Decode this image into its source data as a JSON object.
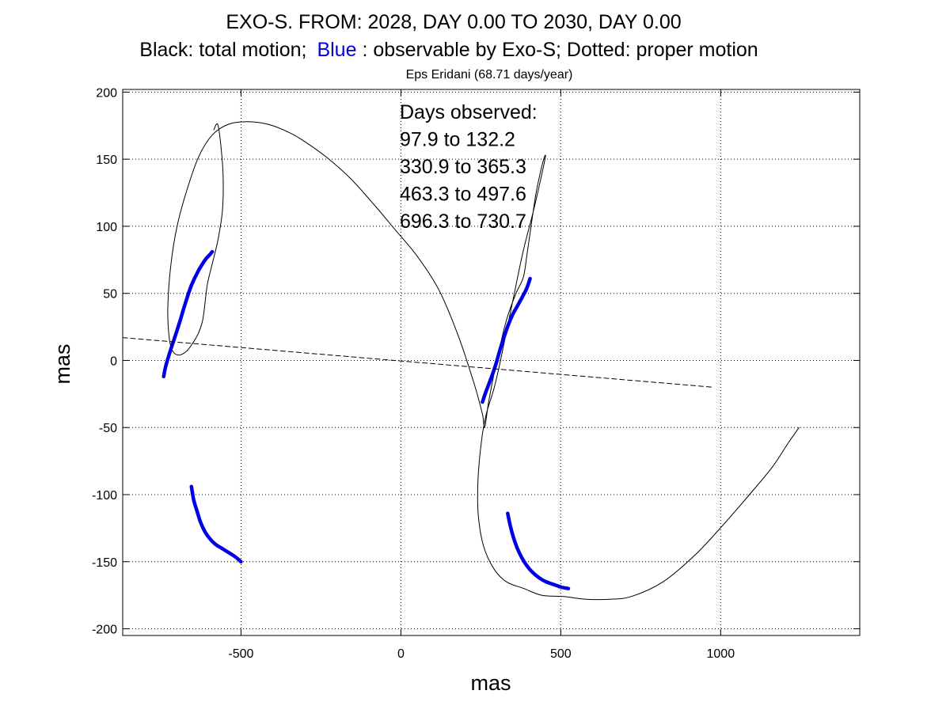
{
  "title": {
    "line1": "EXO-S. FROM: 2028, DAY 0.00 TO 2030, DAY 0.00",
    "line2_black": "Black: total motion;",
    "line2_blue": "Blue",
    "line2_rest": ": observable by Exo-S; Dotted: proper motion",
    "subtitle": "Eps Eridani (68.71 days/year)"
  },
  "colors": {
    "total_motion": "#000000",
    "observable": "#0000e6",
    "proper_motion": "#000000",
    "grid": "#000000"
  },
  "chart_data": {
    "type": "line",
    "xlabel": "mas",
    "ylabel": "mas",
    "xlim": [
      -870,
      1435
    ],
    "ylim": [
      -205,
      202
    ],
    "xticks": [
      -500,
      0,
      500,
      1000
    ],
    "yticks": [
      200,
      150,
      100,
      50,
      0,
      -50,
      -100,
      -150,
      -200
    ],
    "grid": true,
    "grid_style": "dotted",
    "annotation": {
      "heading": "Days observed:",
      "lines": [
        "97.9 to 132.2",
        "330.9 to 365.3",
        "463.3 to 497.6",
        "696.3 to 730.7"
      ]
    },
    "series": [
      {
        "name": "total motion",
        "style": "solid-thin",
        "x": [
          -585,
          -573,
          -563,
          -556,
          -558,
          -572,
          -590,
          -605,
          -613,
          -620,
          -632,
          -648,
          -670,
          -696,
          -716,
          -726,
          -729,
          -720,
          -700,
          -668,
          -632,
          -590,
          -540,
          -480,
          -415,
          -350,
          -300,
          -230,
          -155,
          -80,
          -20,
          50,
          120,
          180,
          230,
          255,
          262,
          275,
          300,
          330,
          360,
          383,
          395,
          410,
          423,
          438,
          448,
          452,
          440,
          415,
          383,
          353,
          327,
          307,
          290,
          267,
          252,
          241,
          242,
          258,
          290,
          330,
          385,
          440,
          510,
          580,
          650,
          720,
          820,
          920,
          1010,
          1090,
          1160,
          1210,
          1245
        ],
        "y": [
          172,
          176,
          160,
          138,
          112,
          90,
          72,
          57,
          42,
          30,
          21,
          14,
          7,
          4,
          8,
          20,
          40,
          70,
          100,
          128,
          152,
          168,
          176,
          178,
          176,
          170,
          163,
          151,
          135,
          115,
          98,
          78,
          52,
          18,
          -18,
          -40,
          -50,
          -30,
          0,
          30,
          50,
          62,
          80,
          105,
          125,
          142,
          151,
          152,
          138,
          112,
          82,
          48,
          18,
          -5,
          -22,
          -40,
          -60,
          -90,
          -115,
          -138,
          -155,
          -165,
          -170,
          -175,
          -176,
          -178,
          -178,
          -176,
          -165,
          -145,
          -122,
          -100,
          -80,
          -62,
          -50
        ]
      },
      {
        "name": "observable segment 1",
        "style": "solid-thick",
        "x": [
          -742,
          -735,
          -720,
          -706,
          -690,
          -675,
          -655,
          -633,
          -612,
          -597,
          -590
        ],
        "y": [
          -12,
          -4,
          8,
          18,
          30,
          42,
          56,
          67,
          75,
          79,
          81
        ]
      },
      {
        "name": "observable segment 2",
        "style": "solid-thick",
        "x": [
          -655,
          -648,
          -638,
          -626,
          -612,
          -597,
          -580,
          -560,
          -540,
          -520,
          -500
        ],
        "y": [
          -94,
          -104,
          -112,
          -121,
          -128,
          -133,
          -137,
          -140,
          -143,
          -146,
          -150
        ]
      },
      {
        "name": "observable segment 3",
        "style": "solid-thick",
        "x": [
          255,
          265,
          276,
          287,
          298,
          310,
          322,
          335,
          349,
          363,
          379,
          394,
          404
        ],
        "y": [
          -31,
          -24,
          -17,
          -10,
          -2,
          8,
          17,
          26,
          34,
          40,
          47,
          54,
          61
        ]
      },
      {
        "name": "observable segment 4",
        "style": "solid-thick",
        "x": [
          334,
          342,
          352,
          364,
          378,
          394,
          412,
          432,
          454,
          478,
          502,
          524
        ],
        "y": [
          -114,
          -123,
          -132,
          -140,
          -147,
          -153,
          -158,
          -162,
          -165,
          -167,
          -169,
          -170
        ]
      },
      {
        "name": "proper motion",
        "style": "dashed",
        "x": [
          -870,
          980
        ],
        "y": [
          17,
          -20
        ]
      }
    ]
  }
}
